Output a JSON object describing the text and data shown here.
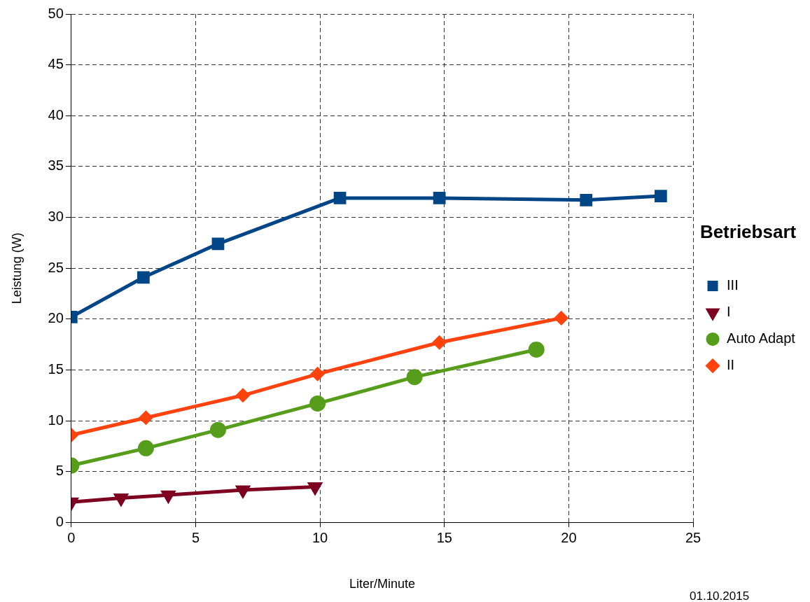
{
  "chart_data": {
    "type": "line",
    "xlabel": "Liter/Minute",
    "ylabel": "Leistung (W)",
    "legend_title": "Betriebsart",
    "legend": "right",
    "grid": true,
    "line_style": "solid",
    "xlim": [
      0,
      25
    ],
    "xticks": [
      0,
      5,
      10,
      15,
      20,
      25
    ],
    "ylim": [
      0,
      50
    ],
    "yticks": [
      0,
      5,
      10,
      15,
      20,
      25,
      30,
      35,
      40,
      45,
      50
    ],
    "series": [
      {
        "name": "III",
        "color": "#004586",
        "marker": "square",
        "x": [
          0,
          2.9,
          5.9,
          10.8,
          14.8,
          20.7,
          23.7
        ],
        "values": [
          20.2,
          24.1,
          27.4,
          31.9,
          31.9,
          31.7,
          32.1
        ]
      },
      {
        "name": "I",
        "color": "#7e0021",
        "marker": "triangle",
        "x": [
          0,
          2,
          3.9,
          6.9,
          9.8
        ],
        "values": [
          2.0,
          2.4,
          2.7,
          3.2,
          3.5
        ]
      },
      {
        "name": "Auto Adapt",
        "color": "#579d1c",
        "marker": "circle",
        "x": [
          0,
          3,
          5.9,
          9.9,
          13.8,
          18.7
        ],
        "values": [
          5.6,
          7.3,
          9.1,
          11.7,
          14.3,
          17.0
        ]
      },
      {
        "name": "II",
        "color": "#ff420e",
        "marker": "diamond",
        "x": [
          0,
          3,
          6.9,
          9.9,
          14.8,
          19.7
        ],
        "values": [
          8.6,
          10.3,
          12.5,
          14.6,
          17.7,
          20.1
        ]
      }
    ],
    "annotations": [
      "01.10.2015"
    ]
  }
}
